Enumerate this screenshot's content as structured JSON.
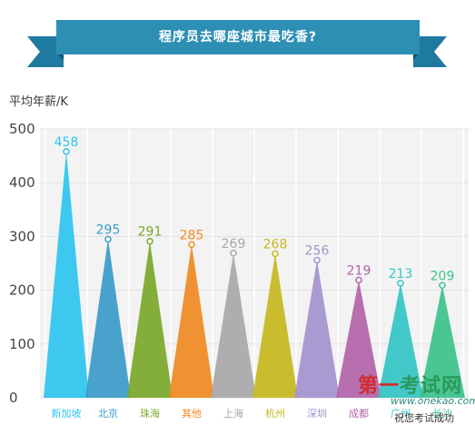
{
  "title": "程序员去哪座城市最吃香?",
  "y_axis_label": "平均年薪/K",
  "colors": {
    "banner": "#2e8fb5",
    "banner_dark": "#1f6f91",
    "grid_bg": "#f3f3f3"
  },
  "watermark": {
    "main_prefix": "第一",
    "main_suffix": "考试网",
    "url": "www.onekao.com",
    "slogan": "祝您考试成功"
  },
  "chart_data": {
    "type": "bar",
    "title": "程序员去哪座城市最吃香?",
    "ylabel": "平均年薪/K",
    "xlabel": "",
    "ylim": [
      0,
      500
    ],
    "yticks": [
      0,
      100,
      200,
      300,
      400,
      500
    ],
    "categories": [
      "新加坡",
      "北京",
      "珠海",
      "其他",
      "上海",
      "杭州",
      "深圳",
      "成都",
      "广州",
      "长沙"
    ],
    "values": [
      458,
      295,
      291,
      285,
      269,
      268,
      256,
      219,
      213,
      209
    ],
    "colors": [
      "#2ec4f0",
      "#3a9bc9",
      "#7aa82a",
      "#f08a22",
      "#a8a8a8",
      "#c5b81e",
      "#a493cf",
      "#b364a9",
      "#33c4c4",
      "#3cc28a"
    ],
    "grid": true,
    "bar_shape": "triangle-peak",
    "data_labels": true
  }
}
